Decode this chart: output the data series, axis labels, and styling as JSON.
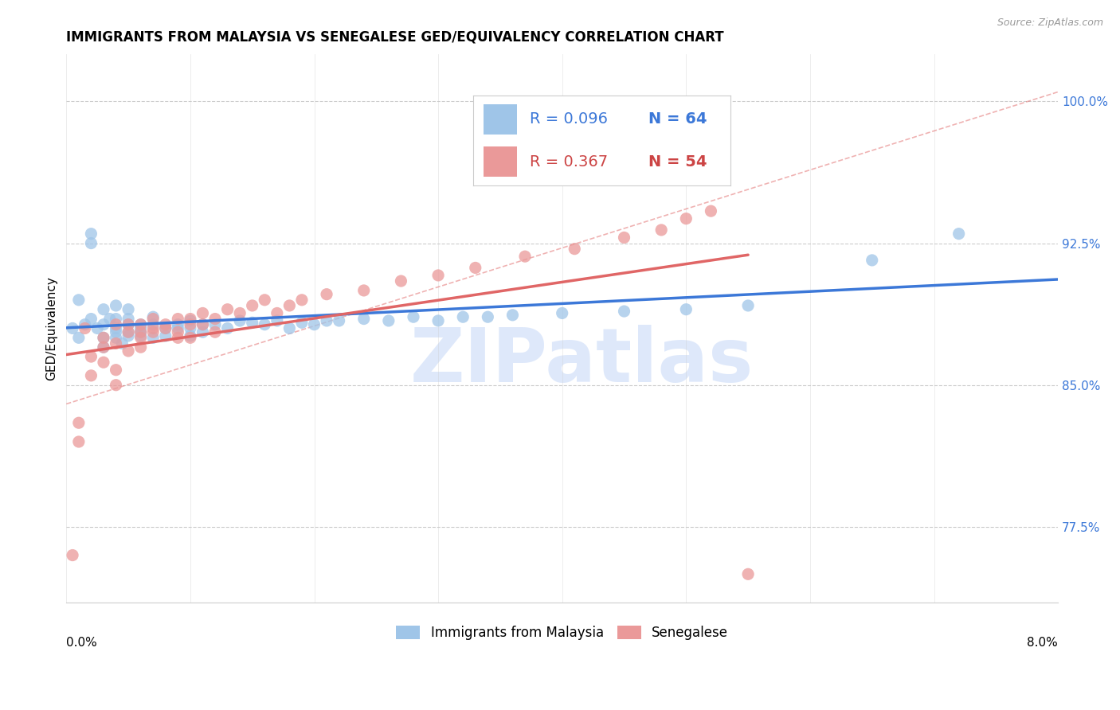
{
  "title": "IMMIGRANTS FROM MALAYSIA VS SENEGALESE GED/EQUIVALENCY CORRELATION CHART",
  "source": "Source: ZipAtlas.com",
  "ylabel": "GED/Equivalency",
  "legend1_r": "0.096",
  "legend1_n": "64",
  "legend2_r": "0.367",
  "legend2_n": "54",
  "color_blue": "#9fc5e8",
  "color_pink": "#ea9999",
  "color_blue_line": "#3c78d8",
  "color_pink_line": "#e06666",
  "xmin": 0.0,
  "xmax": 0.08,
  "ymin": 0.735,
  "ymax": 1.025,
  "right_yticks": [
    0.775,
    0.85,
    0.925,
    1.0
  ],
  "right_ytick_labels": [
    "77.5%",
    "85.0%",
    "92.5%",
    "100.0%"
  ],
  "legend_label1": "Immigrants from Malaysia",
  "legend_label2": "Senegalese",
  "blue_x": [
    0.0005,
    0.001,
    0.001,
    0.0015,
    0.002,
    0.002,
    0.002,
    0.0025,
    0.003,
    0.003,
    0.003,
    0.003,
    0.0035,
    0.004,
    0.004,
    0.004,
    0.004,
    0.004,
    0.0045,
    0.005,
    0.005,
    0.005,
    0.005,
    0.005,
    0.006,
    0.006,
    0.006,
    0.006,
    0.007,
    0.007,
    0.007,
    0.008,
    0.008,
    0.009,
    0.009,
    0.01,
    0.01,
    0.01,
    0.011,
    0.011,
    0.012,
    0.013,
    0.014,
    0.015,
    0.016,
    0.017,
    0.018,
    0.019,
    0.02,
    0.021,
    0.022,
    0.024,
    0.026,
    0.028,
    0.03,
    0.032,
    0.034,
    0.036,
    0.04,
    0.045,
    0.05,
    0.055,
    0.065,
    0.072
  ],
  "blue_y": [
    0.88,
    0.875,
    0.895,
    0.882,
    0.925,
    0.93,
    0.885,
    0.88,
    0.875,
    0.87,
    0.89,
    0.882,
    0.885,
    0.875,
    0.88,
    0.885,
    0.878,
    0.892,
    0.872,
    0.878,
    0.882,
    0.876,
    0.885,
    0.89,
    0.878,
    0.882,
    0.876,
    0.88,
    0.875,
    0.882,
    0.886,
    0.88,
    0.876,
    0.882,
    0.88,
    0.884,
    0.876,
    0.88,
    0.882,
    0.878,
    0.882,
    0.88,
    0.884,
    0.883,
    0.882,
    0.884,
    0.88,
    0.883,
    0.882,
    0.884,
    0.884,
    0.885,
    0.884,
    0.886,
    0.884,
    0.886,
    0.886,
    0.887,
    0.888,
    0.889,
    0.89,
    0.892,
    0.916,
    0.93
  ],
  "pink_x": [
    0.0005,
    0.001,
    0.001,
    0.0015,
    0.002,
    0.002,
    0.003,
    0.003,
    0.003,
    0.004,
    0.004,
    0.004,
    0.004,
    0.005,
    0.005,
    0.005,
    0.006,
    0.006,
    0.006,
    0.006,
    0.007,
    0.007,
    0.007,
    0.008,
    0.008,
    0.009,
    0.009,
    0.009,
    0.01,
    0.01,
    0.01,
    0.011,
    0.011,
    0.012,
    0.012,
    0.013,
    0.014,
    0.015,
    0.016,
    0.017,
    0.018,
    0.019,
    0.021,
    0.024,
    0.027,
    0.03,
    0.033,
    0.037,
    0.041,
    0.045,
    0.048,
    0.05,
    0.052,
    0.055
  ],
  "pink_y": [
    0.76,
    0.83,
    0.82,
    0.88,
    0.855,
    0.865,
    0.87,
    0.875,
    0.862,
    0.85,
    0.858,
    0.872,
    0.882,
    0.882,
    0.868,
    0.878,
    0.875,
    0.87,
    0.878,
    0.882,
    0.88,
    0.878,
    0.885,
    0.882,
    0.88,
    0.875,
    0.885,
    0.878,
    0.882,
    0.885,
    0.875,
    0.888,
    0.882,
    0.885,
    0.878,
    0.89,
    0.888,
    0.892,
    0.895,
    0.888,
    0.892,
    0.895,
    0.898,
    0.9,
    0.905,
    0.908,
    0.912,
    0.918,
    0.922,
    0.928,
    0.932,
    0.938,
    0.942,
    0.75
  ],
  "watermark": "ZIPatlas",
  "watermark_color": "#c9daf8",
  "dashed_color": "#e06666"
}
